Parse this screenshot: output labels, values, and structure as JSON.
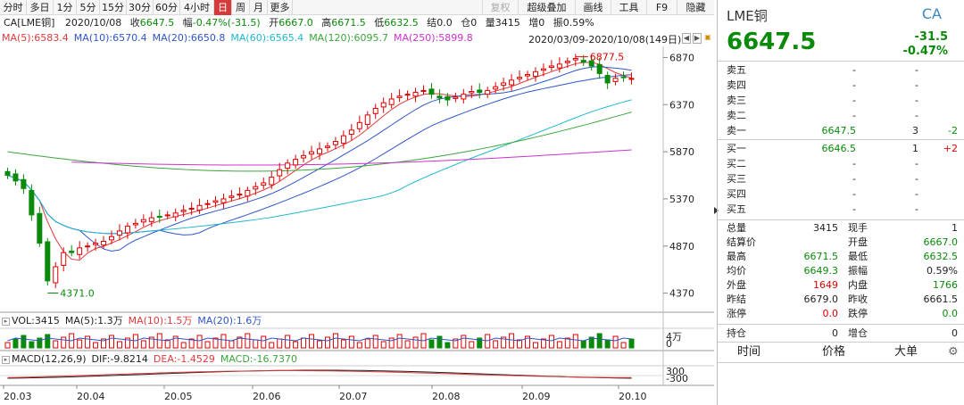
{
  "toolbar": {
    "periods": [
      "分时",
      "多日",
      "1分",
      "5分",
      "15分",
      "30分",
      "60分",
      "4小时",
      "日",
      "周",
      "月",
      "更多"
    ],
    "active_index": 8,
    "right_buttons": [
      "复权",
      "超级叠加",
      "画线",
      "工具",
      "F9",
      "隐藏"
    ],
    "disabled_index": 0
  },
  "quote": {
    "code": "CA[LME铜]",
    "date": "2020/10/08",
    "close_label": "收",
    "close": "6647.5",
    "change_label": "幅",
    "change": "-0.47%(-31.5)",
    "open_label": "开",
    "open": "6667.0",
    "high_label": "高",
    "high": "6671.5",
    "low_label": "低",
    "low": "6632.5",
    "settle_label": "结",
    "settle": "0.0",
    "oi_label": "仓",
    "oi": "0",
    "vol_label": "量",
    "vol": "3415",
    "inc_label": "增",
    "inc": "0",
    "amp_label": "振",
    "amp": "0.59%"
  },
  "ma": [
    {
      "label": "MA(5):6583.4",
      "color": "#e23a3a"
    },
    {
      "label": "MA(10):6570.4",
      "color": "#2f56c7"
    },
    {
      "label": "MA(20):6650.8",
      "color": "#2f56c7"
    },
    {
      "label": "MA(60):6565.4",
      "color": "#22b8cf"
    },
    {
      "label": "MA(120):6095.7",
      "color": "#3aa63a"
    },
    {
      "label": "MA(250):5899.8",
      "color": "#cc33cc"
    }
  ],
  "range_text": "2020/03/09-2020/10/08(149日)",
  "range_buttons": [
    "◀",
    "▶",
    "🔒"
  ],
  "price_axis": [
    "6870",
    "6370",
    "5870",
    "5370",
    "4870",
    "4370"
  ],
  "annotations": {
    "high": "6877.5",
    "low": "4371.0"
  },
  "volume": {
    "legend": [
      {
        "label": "VOL:3415",
        "color": "#222"
      },
      {
        "label": "MA(5):1.3万",
        "color": "#222"
      },
      {
        "label": "MA(10):1.5万",
        "color": "#e23a3a"
      },
      {
        "label": "MA(20):1.6万",
        "color": "#2f56c7"
      }
    ],
    "axis": [
      "4万",
      "0"
    ]
  },
  "macd": {
    "legend": [
      {
        "label": "MACD(12,26,9)",
        "color": "#222"
      },
      {
        "label": "DIF:-9.8214",
        "color": "#222"
      },
      {
        "label": "DEA:-1.4529",
        "color": "#e23a3a"
      },
      {
        "label": "MACD:-16.7370",
        "color": "#3aa63a"
      }
    ],
    "axis": [
      "300",
      "-300"
    ]
  },
  "date_axis": [
    "20.03",
    "20.04",
    "20.05",
    "20.06",
    "20.07",
    "20.08",
    "20.09",
    "20.10"
  ],
  "panel": {
    "name": "LME铜",
    "code": "CA",
    "price": "6647.5",
    "change": "-31.5",
    "pct": "-0.47%",
    "orderbook": [
      {
        "label": "卖五",
        "price": "-",
        "vol": "-",
        "delta": ""
      },
      {
        "label": "卖四",
        "price": "-",
        "vol": "-",
        "delta": ""
      },
      {
        "label": "卖三",
        "price": "-",
        "vol": "-",
        "delta": ""
      },
      {
        "label": "卖二",
        "price": "-",
        "vol": "-",
        "delta": ""
      },
      {
        "label": "卖一",
        "price": "6647.5",
        "vol": "3",
        "delta": "-2"
      },
      {
        "label": "买一",
        "price": "6646.5",
        "vol": "1",
        "delta": "+2"
      },
      {
        "label": "买二",
        "price": "-",
        "vol": "-",
        "delta": ""
      },
      {
        "label": "买三",
        "price": "-",
        "vol": "-",
        "delta": ""
      },
      {
        "label": "买四",
        "price": "-",
        "vol": "-",
        "delta": ""
      },
      {
        "label": "买五",
        "price": "-",
        "vol": "-",
        "delta": ""
      }
    ],
    "stats": [
      {
        "l1": "总量",
        "v1": "3415",
        "c1": "#222",
        "l2": "现手",
        "v2": "1",
        "c2": "#222"
      },
      {
        "l1": "结算价",
        "v1": "",
        "c1": "#222",
        "l2": "开盘",
        "v2": "6667.0",
        "c2": "#0a8a0a"
      },
      {
        "l1": "最高",
        "v1": "6671.5",
        "c1": "#0a8a0a",
        "l2": "最低",
        "v2": "6632.5",
        "c2": "#0a8a0a"
      },
      {
        "l1": "均价",
        "v1": "6649.3",
        "c1": "#0a8a0a",
        "l2": "振幅",
        "v2": "0.59%",
        "c2": "#222"
      },
      {
        "l1": "外盘",
        "v1": "1649",
        "c1": "#d00",
        "l2": "内盘",
        "v2": "1766",
        "c2": "#0a8a0a"
      },
      {
        "l1": "昨结",
        "v1": "6679.0",
        "c1": "#222",
        "l2": "昨收",
        "v2": "6661.5",
        "c2": "#222"
      },
      {
        "l1": "涨停",
        "v1": "0.0",
        "c1": "#d00",
        "l2": "跌停",
        "v2": "0.0",
        "c2": "#0a8a0a"
      },
      {
        "l1": "持仓",
        "v1": "0",
        "c1": "#222",
        "l2": "增仓",
        "v2": "0",
        "c2": "#222"
      }
    ],
    "tick_header": [
      "时间",
      "价格",
      "大单"
    ]
  },
  "chart_data": {
    "type": "candlestick",
    "title": "CA[LME铜] 日K",
    "x_range": [
      "2020/03/09",
      "2020/10/08"
    ],
    "ylim": [
      4300,
      6950
    ],
    "y_ticks": [
      4370,
      4870,
      5370,
      5870,
      6370,
      6870
    ],
    "high_annotation": 6877.5,
    "low_annotation": 4371.0,
    "close_series_approx": [
      5620,
      5560,
      5480,
      5200,
      4900,
      4500,
      4650,
      4800,
      4800,
      4850,
      4870,
      4900,
      4920,
      4970,
      5030,
      5080,
      5110,
      5150,
      5170,
      5180,
      5200,
      5220,
      5250,
      5270,
      5300,
      5320,
      5350,
      5370,
      5400,
      5420,
      5460,
      5500,
      5540,
      5600,
      5680,
      5750,
      5790,
      5830,
      5870,
      5900,
      5930,
      5980,
      6040,
      6100,
      6180,
      6260,
      6330,
      6390,
      6430,
      6460,
      6480,
      6500,
      6520,
      6480,
      6440,
      6420,
      6450,
      6480,
      6510,
      6500,
      6520,
      6560,
      6600,
      6630,
      6660,
      6690,
      6720,
      6750,
      6780,
      6800,
      6830,
      6860,
      6820,
      6780,
      6700,
      6600,
      6650,
      6660,
      6647.5
    ],
    "series": [
      {
        "name": "MA(5)",
        "last": 6583.4
      },
      {
        "name": "MA(10)",
        "last": 6570.4
      },
      {
        "name": "MA(20)",
        "last": 6650.8
      },
      {
        "name": "MA(60)",
        "last": 6565.4
      },
      {
        "name": "MA(120)",
        "last": 6095.7
      },
      {
        "name": "MA(250)",
        "last": 5899.8
      }
    ],
    "volume_last": 3415,
    "macd": {
      "dif": -9.8214,
      "dea": -1.4529,
      "macd": -16.737,
      "ylim": [
        -300,
        300
      ]
    },
    "categories": [
      "20.03",
      "20.04",
      "20.05",
      "20.06",
      "20.07",
      "20.08",
      "20.09",
      "20.10"
    ]
  }
}
